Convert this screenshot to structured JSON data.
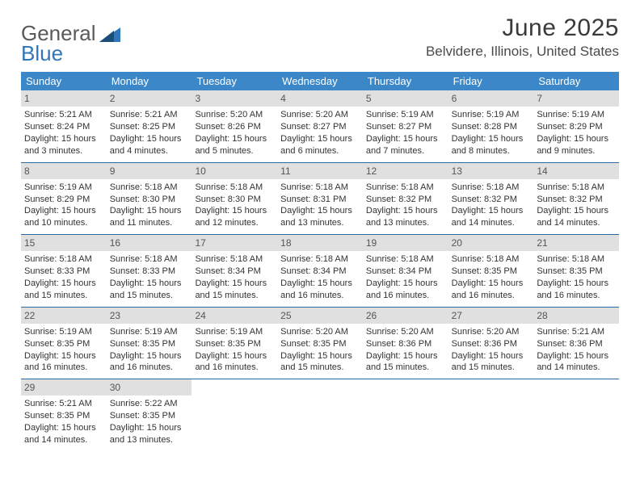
{
  "logo": {
    "text1": "General",
    "text2": "Blue",
    "color_gray": "#5a5a5a",
    "color_blue": "#2f77ba"
  },
  "title": "June 2025",
  "location": "Belvidere, Illinois, United States",
  "colors": {
    "header_bg": "#3b87c8",
    "header_text": "#ffffff",
    "daynum_bg": "#e0e0e0",
    "daynum_text": "#555555",
    "divider": "#2a6aa0",
    "body_text": "#333333",
    "background": "#ffffff"
  },
  "typography": {
    "title_fontsize": 30,
    "location_fontsize": 17,
    "dow_fontsize": 13,
    "cell_fontsize": 11,
    "font_family": "Arial"
  },
  "days_of_week": [
    "Sunday",
    "Monday",
    "Tuesday",
    "Wednesday",
    "Thursday",
    "Friday",
    "Saturday"
  ],
  "weeks": [
    [
      {
        "n": "1",
        "sr": "Sunrise: 5:21 AM",
        "ss": "Sunset: 8:24 PM",
        "dl": "Daylight: 15 hours and 3 minutes."
      },
      {
        "n": "2",
        "sr": "Sunrise: 5:21 AM",
        "ss": "Sunset: 8:25 PM",
        "dl": "Daylight: 15 hours and 4 minutes."
      },
      {
        "n": "3",
        "sr": "Sunrise: 5:20 AM",
        "ss": "Sunset: 8:26 PM",
        "dl": "Daylight: 15 hours and 5 minutes."
      },
      {
        "n": "4",
        "sr": "Sunrise: 5:20 AM",
        "ss": "Sunset: 8:27 PM",
        "dl": "Daylight: 15 hours and 6 minutes."
      },
      {
        "n": "5",
        "sr": "Sunrise: 5:19 AM",
        "ss": "Sunset: 8:27 PM",
        "dl": "Daylight: 15 hours and 7 minutes."
      },
      {
        "n": "6",
        "sr": "Sunrise: 5:19 AM",
        "ss": "Sunset: 8:28 PM",
        "dl": "Daylight: 15 hours and 8 minutes."
      },
      {
        "n": "7",
        "sr": "Sunrise: 5:19 AM",
        "ss": "Sunset: 8:29 PM",
        "dl": "Daylight: 15 hours and 9 minutes."
      }
    ],
    [
      {
        "n": "8",
        "sr": "Sunrise: 5:19 AM",
        "ss": "Sunset: 8:29 PM",
        "dl": "Daylight: 15 hours and 10 minutes."
      },
      {
        "n": "9",
        "sr": "Sunrise: 5:18 AM",
        "ss": "Sunset: 8:30 PM",
        "dl": "Daylight: 15 hours and 11 minutes."
      },
      {
        "n": "10",
        "sr": "Sunrise: 5:18 AM",
        "ss": "Sunset: 8:30 PM",
        "dl": "Daylight: 15 hours and 12 minutes."
      },
      {
        "n": "11",
        "sr": "Sunrise: 5:18 AM",
        "ss": "Sunset: 8:31 PM",
        "dl": "Daylight: 15 hours and 13 minutes."
      },
      {
        "n": "12",
        "sr": "Sunrise: 5:18 AM",
        "ss": "Sunset: 8:32 PM",
        "dl": "Daylight: 15 hours and 13 minutes."
      },
      {
        "n": "13",
        "sr": "Sunrise: 5:18 AM",
        "ss": "Sunset: 8:32 PM",
        "dl": "Daylight: 15 hours and 14 minutes."
      },
      {
        "n": "14",
        "sr": "Sunrise: 5:18 AM",
        "ss": "Sunset: 8:32 PM",
        "dl": "Daylight: 15 hours and 14 minutes."
      }
    ],
    [
      {
        "n": "15",
        "sr": "Sunrise: 5:18 AM",
        "ss": "Sunset: 8:33 PM",
        "dl": "Daylight: 15 hours and 15 minutes."
      },
      {
        "n": "16",
        "sr": "Sunrise: 5:18 AM",
        "ss": "Sunset: 8:33 PM",
        "dl": "Daylight: 15 hours and 15 minutes."
      },
      {
        "n": "17",
        "sr": "Sunrise: 5:18 AM",
        "ss": "Sunset: 8:34 PM",
        "dl": "Daylight: 15 hours and 15 minutes."
      },
      {
        "n": "18",
        "sr": "Sunrise: 5:18 AM",
        "ss": "Sunset: 8:34 PM",
        "dl": "Daylight: 15 hours and 16 minutes."
      },
      {
        "n": "19",
        "sr": "Sunrise: 5:18 AM",
        "ss": "Sunset: 8:34 PM",
        "dl": "Daylight: 15 hours and 16 minutes."
      },
      {
        "n": "20",
        "sr": "Sunrise: 5:18 AM",
        "ss": "Sunset: 8:35 PM",
        "dl": "Daylight: 15 hours and 16 minutes."
      },
      {
        "n": "21",
        "sr": "Sunrise: 5:18 AM",
        "ss": "Sunset: 8:35 PM",
        "dl": "Daylight: 15 hours and 16 minutes."
      }
    ],
    [
      {
        "n": "22",
        "sr": "Sunrise: 5:19 AM",
        "ss": "Sunset: 8:35 PM",
        "dl": "Daylight: 15 hours and 16 minutes."
      },
      {
        "n": "23",
        "sr": "Sunrise: 5:19 AM",
        "ss": "Sunset: 8:35 PM",
        "dl": "Daylight: 15 hours and 16 minutes."
      },
      {
        "n": "24",
        "sr": "Sunrise: 5:19 AM",
        "ss": "Sunset: 8:35 PM",
        "dl": "Daylight: 15 hours and 16 minutes."
      },
      {
        "n": "25",
        "sr": "Sunrise: 5:20 AM",
        "ss": "Sunset: 8:35 PM",
        "dl": "Daylight: 15 hours and 15 minutes."
      },
      {
        "n": "26",
        "sr": "Sunrise: 5:20 AM",
        "ss": "Sunset: 8:36 PM",
        "dl": "Daylight: 15 hours and 15 minutes."
      },
      {
        "n": "27",
        "sr": "Sunrise: 5:20 AM",
        "ss": "Sunset: 8:36 PM",
        "dl": "Daylight: 15 hours and 15 minutes."
      },
      {
        "n": "28",
        "sr": "Sunrise: 5:21 AM",
        "ss": "Sunset: 8:36 PM",
        "dl": "Daylight: 15 hours and 14 minutes."
      }
    ],
    [
      {
        "n": "29",
        "sr": "Sunrise: 5:21 AM",
        "ss": "Sunset: 8:35 PM",
        "dl": "Daylight: 15 hours and 14 minutes."
      },
      {
        "n": "30",
        "sr": "Sunrise: 5:22 AM",
        "ss": "Sunset: 8:35 PM",
        "dl": "Daylight: 15 hours and 13 minutes."
      },
      null,
      null,
      null,
      null,
      null
    ]
  ]
}
